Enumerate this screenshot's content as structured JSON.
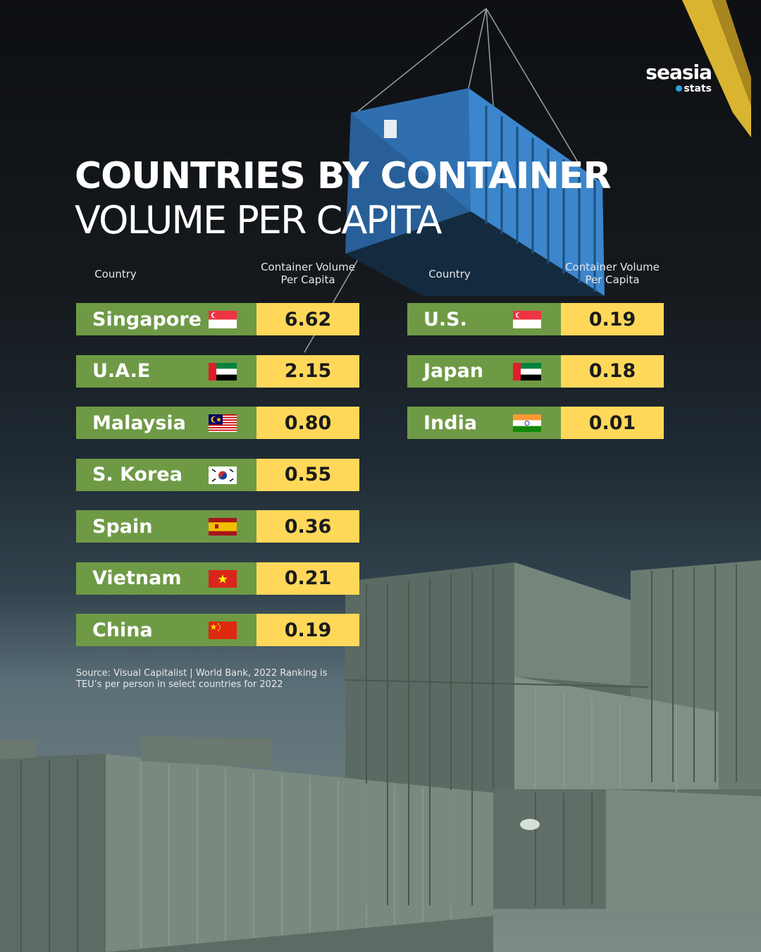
{
  "brand": {
    "logo_main": "seasia",
    "logo_sub": "stats"
  },
  "title": {
    "line1": "COUNTRIES BY CONTAINER",
    "line2": "VOLUME PER CAPITA"
  },
  "columns": {
    "country": "Country",
    "value_line1": "Container Volume",
    "value_line2": "Per Capita"
  },
  "source": "Source: Visual Capitalist | World Bank, 2022 Ranking is TEU’s per person in select countries for 2022",
  "colors": {
    "country_cell": "#6e9a45",
    "value_cell": "#ffd85a"
  },
  "chart_data": {
    "type": "table",
    "title": "COUNTRIES BY CONTAINER VOLUME PER CAPITA",
    "columns": [
      "Country",
      "Container Volume Per Capita"
    ],
    "left_rows": [
      {
        "country": "Singapore",
        "flag": "singapore-flag",
        "value": "6.62"
      },
      {
        "country": "U.A.E",
        "flag": "uae-flag",
        "value": "2.15"
      },
      {
        "country": "Malaysia",
        "flag": "malaysia-flag",
        "value": "0.80"
      },
      {
        "country": "S. Korea",
        "flag": "south-korea-flag",
        "value": "0.55"
      },
      {
        "country": "Spain",
        "flag": "spain-flag",
        "value": "0.36"
      },
      {
        "country": "Vietnam",
        "flag": "vietnam-flag",
        "value": "0.21"
      },
      {
        "country": "China",
        "flag": "china-flag",
        "value": "0.19"
      }
    ],
    "right_rows": [
      {
        "country": "U.S.",
        "flag": "singapore-flag",
        "value": "0.19"
      },
      {
        "country": "Japan",
        "flag": "uae-flag",
        "value": "0.18"
      },
      {
        "country": "India",
        "flag": "india-flag",
        "value": "0.01"
      }
    ]
  }
}
